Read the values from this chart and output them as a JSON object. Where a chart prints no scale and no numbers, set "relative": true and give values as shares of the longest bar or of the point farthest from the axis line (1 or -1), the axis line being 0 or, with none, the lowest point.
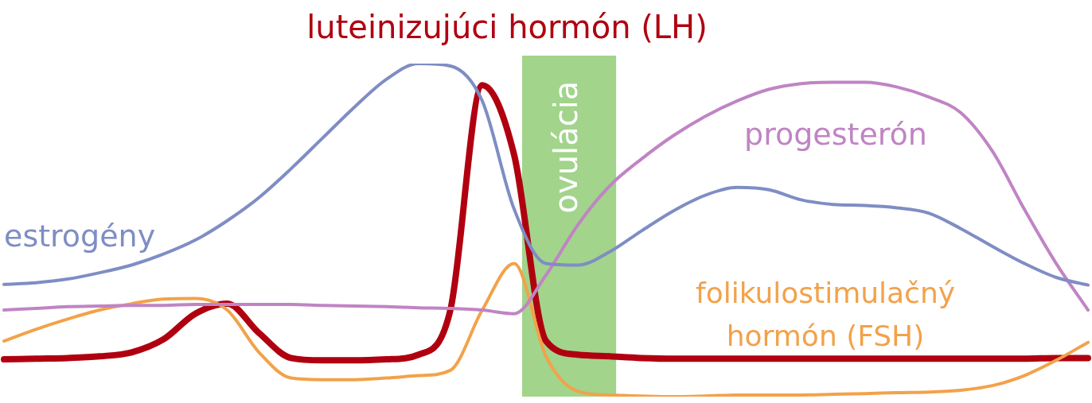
{
  "chart_data": {
    "type": "line",
    "relative": true,
    "legend": false,
    "marker": "none",
    "line_style": "solid",
    "categories": [
      null,
      null,
      null,
      null,
      null,
      null,
      null,
      null,
      null,
      null,
      null,
      null,
      null,
      null,
      null,
      null,
      null,
      null,
      null,
      null,
      null,
      null,
      null,
      null,
      null,
      null,
      null,
      null,
      null,
      null,
      null,
      null,
      null,
      null,
      null
    ],
    "series": [
      {
        "name": "estrogény",
        "color": "#7f8dc4",
        "values": [
          0.337,
          0.342,
          0.353,
          0.372,
          0.395,
          0.428,
          0.47,
          0.528,
          0.598,
          0.684,
          0.777,
          0.87,
          0.953,
          1,
          0.993,
          0.888,
          0.563,
          0.4,
          0.395,
          0.435,
          0.498,
          0.558,
          0.605,
          0.628,
          0.621,
          0.591,
          0.577,
          0.574,
          0.567,
          0.551,
          0.505,
          0.451,
          0.4,
          0.358,
          0.335
        ]
      },
      {
        "name": "progesterón",
        "color": "#c084c4",
        "values": [
          0.26,
          0.265,
          0.27,
          0.272,
          0.274,
          0.274,
          0.277,
          0.277,
          0.277,
          0.277,
          0.274,
          0.272,
          0.27,
          0.267,
          0.265,
          0.26,
          0.249,
          0.365,
          0.516,
          0.633,
          0.714,
          0.784,
          0.842,
          0.888,
          0.923,
          0.94,
          0.944,
          0.944,
          0.93,
          0.9,
          0.853,
          0.737,
          0.563,
          0.4,
          0.26
        ]
      },
      {
        "name": "folikulostimulačný hormón (FSH)",
        "color": "#f2a24a",
        "values": [
          0.167,
          0.202,
          0.233,
          0.26,
          0.279,
          0.293,
          0.295,
          0.26,
          0.133,
          0.056,
          0.051,
          0.051,
          0.056,
          0.063,
          0.079,
          0.26,
          0.4,
          0.121,
          0.016,
          0.005,
          0.002,
          0,
          0.002,
          0.005,
          0.005,
          0.005,
          0.007,
          0.009,
          0.012,
          0.014,
          0.019,
          0.033,
          0.063,
          0.109,
          0.163
        ]
      },
      {
        "name": "luteinizujúci hormón (LH)",
        "color": "#b00010",
        "values": [
          0.112,
          0.114,
          0.116,
          0.121,
          0.133,
          0.172,
          0.249,
          0.279,
          0.191,
          0.116,
          0.109,
          0.109,
          0.112,
          0.126,
          0.26,
          0.935,
          0.726,
          0.167,
          0.126,
          0.121,
          0.116,
          0.114,
          0.114,
          0.114,
          0.114,
          0.114,
          0.114,
          0.114,
          0.114,
          0.114,
          0.114,
          0.114,
          0.114,
          0.116,
          0.116
        ]
      }
    ],
    "annotations": [
      "ovulácia"
    ]
  }
}
